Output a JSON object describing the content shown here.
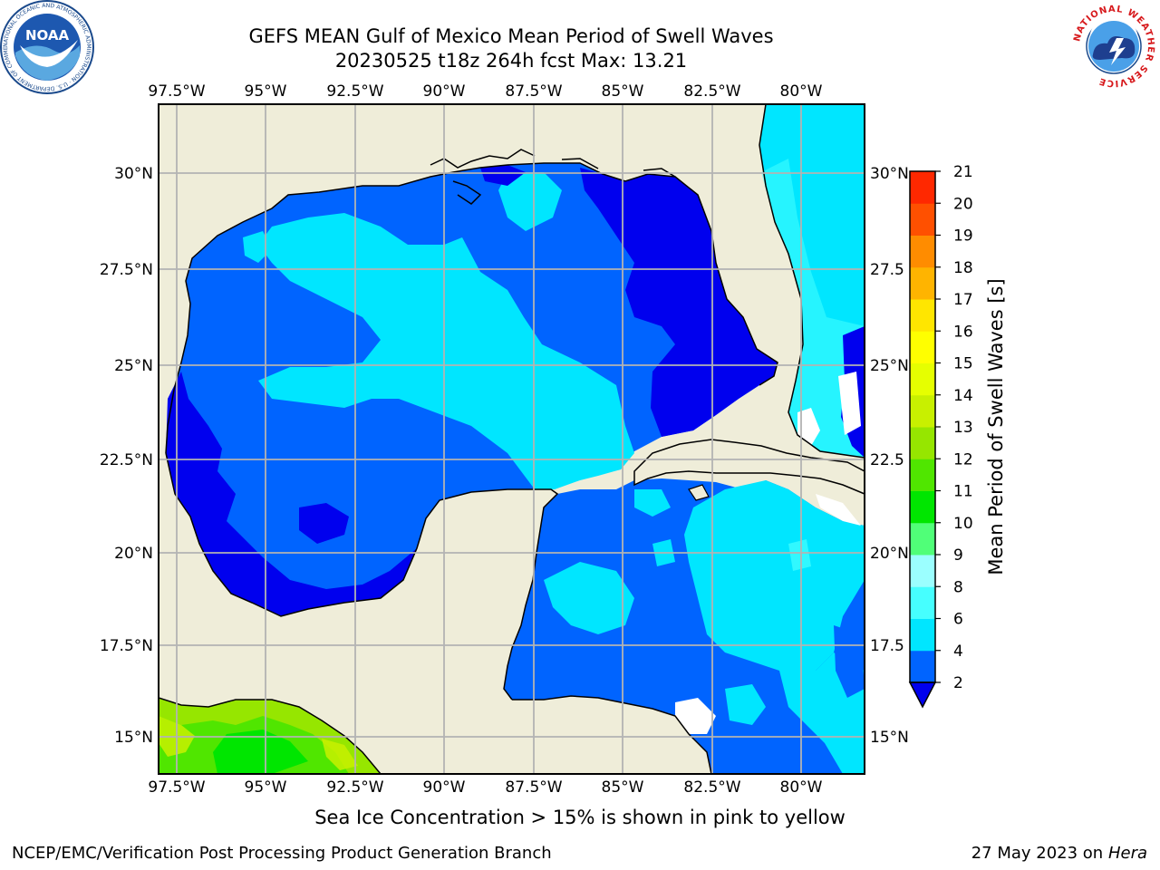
{
  "header": {
    "title_line1": "GEFS MEAN Gulf of Mexico Mean Period of Swell Waves",
    "title_line2": "20230525 t18z 264h fcst   Max: 13.21"
  },
  "logos": {
    "left": "NOAA",
    "left_ring_text": "NATIONAL OCEANIC AND ATMOSPHERIC ADMINISTRATION · U.S. DEPARTMENT OF COMMERCE",
    "right_ring_text": "NATIONAL WEATHER SERVICE"
  },
  "map": {
    "lon_ticks": [
      "97.5°W",
      "95°W",
      "92.5°W",
      "90°W",
      "87.5°W",
      "85°W",
      "82.5°W",
      "80°W"
    ],
    "lat_ticks_left": [
      "30°N",
      "27.5°N",
      "25°N",
      "22.5°N",
      "20°N",
      "17.5°N",
      "15°N"
    ],
    "lat_ticks_right": [
      "30°N",
      "27.5",
      "25°N",
      "22.5",
      "20°N",
      "17.5",
      "15°N"
    ],
    "colors": {
      "land": "#efedd9",
      "frame": "#000000",
      "grid": "#b3b3b3",
      "missing": "#ffffff"
    }
  },
  "colorbar": {
    "label": "Mean Period of Swell Waves [s]",
    "ticks": [
      "2",
      "4",
      "6",
      "8",
      "9",
      "10",
      "11",
      "12",
      "13",
      "14",
      "15",
      "16",
      "17",
      "18",
      "19",
      "20",
      "21"
    ],
    "colors": [
      "#0064ff",
      "#00e6ff",
      "#46ffff",
      "#9bffff",
      "#50ff78",
      "#00e600",
      "#50e600",
      "#96e600",
      "#c8f000",
      "#e6ff00",
      "#ffff00",
      "#ffe600",
      "#ffb400",
      "#ff8c00",
      "#ff5000",
      "#ff2800",
      "#ff0000"
    ],
    "under_color": "#0000ee"
  },
  "footer": {
    "note": "Sea Ice Concentration > 15% is shown in pink to yellow",
    "left": "NCEP/EMC/Verification Post Processing Product Generation Branch",
    "date": "27 May 2023 on",
    "machine": "Hera"
  }
}
